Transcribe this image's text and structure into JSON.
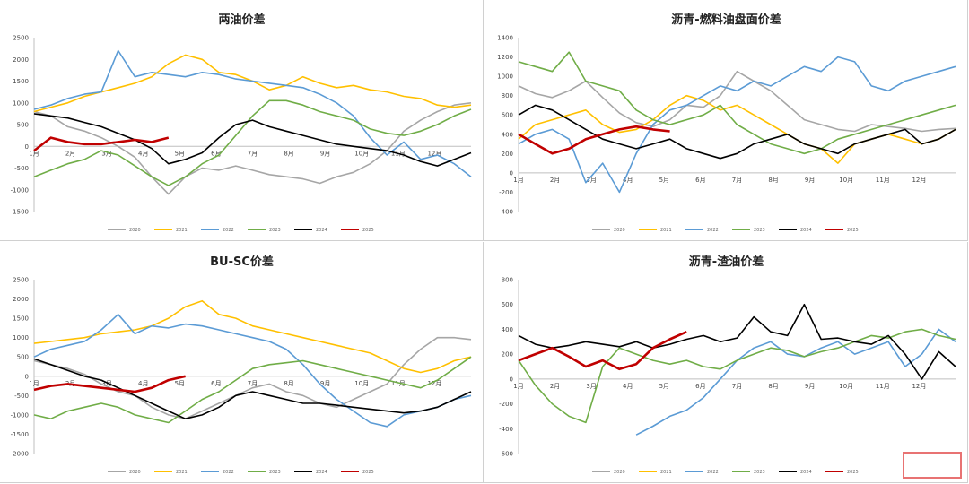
{
  "palette": {
    "2020": "#a6a6a6",
    "2021": "#ffc000",
    "2022": "#5b9bd5",
    "2023": "#70ad47",
    "2024": "#000000",
    "2025": "#c00000"
  },
  "watermark_text": "",
  "chart_data": [
    {
      "type": "line",
      "title": "两油价差",
      "ylim": [
        -1500,
        2500
      ],
      "yticks": [
        "2500",
        "2000",
        "1500",
        "1000",
        "500",
        "0",
        "-500",
        "-1000",
        "-1500"
      ],
      "months": [
        "1月",
        "2月",
        "3月",
        "4月",
        "5月",
        "6月",
        "7月",
        "8月",
        "9月",
        "10月",
        "11月",
        "12月"
      ],
      "series": [
        {
          "name": "2020",
          "color": "#a6a6a6",
          "y": [
            800,
            700,
            450,
            350,
            200,
            0,
            -250,
            -700,
            -1100,
            -700,
            -500,
            -550,
            -450,
            -550,
            -650,
            -700,
            -750,
            -850,
            -700,
            -600,
            -400,
            -100,
            350,
            600,
            800,
            950,
            1000
          ]
        },
        {
          "name": "2021",
          "color": "#ffc000",
          "y": [
            800,
            900,
            1000,
            1150,
            1250,
            1350,
            1450,
            1600,
            1900,
            2100,
            2000,
            1700,
            1650,
            1500,
            1300,
            1400,
            1600,
            1450,
            1350,
            1400,
            1300,
            1250,
            1150,
            1100,
            950,
            900,
            950
          ]
        },
        {
          "name": "2022",
          "color": "#5b9bd5",
          "y": [
            850,
            950,
            1100,
            1200,
            1250,
            2200,
            1600,
            1700,
            1650,
            1600,
            1700,
            1650,
            1550,
            1500,
            1450,
            1400,
            1350,
            1200,
            1000,
            700,
            200,
            -200,
            100,
            -300,
            -200,
            -400,
            -700
          ]
        },
        {
          "name": "2023",
          "color": "#70ad47",
          "y": [
            -700,
            -550,
            -400,
            -300,
            -100,
            -200,
            -450,
            -700,
            -900,
            -700,
            -400,
            -200,
            250,
            700,
            1050,
            1050,
            950,
            800,
            700,
            600,
            400,
            300,
            250,
            350,
            500,
            700,
            850
          ]
        },
        {
          "name": "2024",
          "color": "#000000",
          "y": [
            750,
            700,
            650,
            550,
            450,
            300,
            150,
            -50,
            -400,
            -300,
            -150,
            200,
            500,
            600,
            450,
            350,
            250,
            150,
            50,
            0,
            -50,
            -100,
            -200,
            -350,
            -450,
            -300,
            -150
          ]
        },
        {
          "name": "2025",
          "color": "#c00000",
          "y": [
            -100,
            200,
            100,
            50,
            50,
            100,
            150,
            100,
            200
          ]
        }
      ]
    },
    {
      "type": "line",
      "title": "沥青-燃料油盘面价差",
      "ylim": [
        -400,
        1400
      ],
      "yticks": [
        "1400",
        "1200",
        "1000",
        "800",
        "600",
        "400",
        "200",
        "0",
        "-200",
        "-400"
      ],
      "months": [
        "1月",
        "2月",
        "3月",
        "4月",
        "5月",
        "6月",
        "7月",
        "8月",
        "9月",
        "10月",
        "11月",
        "12月"
      ],
      "series": [
        {
          "name": "2020",
          "color": "#a6a6a6",
          "y": [
            900,
            820,
            780,
            850,
            950,
            780,
            620,
            520,
            480,
            550,
            700,
            680,
            800,
            1050,
            950,
            850,
            700,
            550,
            500,
            450,
            430,
            500,
            480,
            460,
            430,
            450,
            460
          ]
        },
        {
          "name": "2021",
          "color": "#ffc000",
          "y": [
            350,
            500,
            550,
            600,
            650,
            500,
            420,
            450,
            550,
            700,
            800,
            750,
            650,
            700,
            600,
            500,
            400,
            300,
            250,
            100,
            300,
            350,
            400,
            350,
            300,
            350,
            450
          ]
        },
        {
          "name": "2022",
          "color": "#5b9bd5",
          "y": [
            300,
            400,
            450,
            350,
            -100,
            100,
            -200,
            200,
            500,
            650,
            700,
            800,
            900,
            850,
            950,
            900,
            1000,
            1100,
            1050,
            1200,
            1150,
            900,
            850,
            950,
            1000,
            1050,
            1100
          ]
        },
        {
          "name": "2023",
          "color": "#70ad47",
          "y": [
            1150,
            1100,
            1050,
            1250,
            950,
            900,
            850,
            650,
            550,
            500,
            550,
            600,
            700,
            500,
            400,
            300,
            250,
            200,
            250,
            350,
            400,
            450,
            500,
            550,
            600,
            650,
            700
          ]
        },
        {
          "name": "2024",
          "color": "#000000",
          "y": [
            600,
            700,
            650,
            550,
            450,
            350,
            300,
            250,
            300,
            350,
            250,
            200,
            150,
            200,
            300,
            350,
            400,
            300,
            250,
            200,
            300,
            350,
            400,
            450,
            300,
            350,
            450
          ]
        },
        {
          "name": "2025",
          "color": "#c00000",
          "y": [
            400,
            300,
            200,
            250,
            350,
            400,
            450,
            480,
            450,
            430
          ]
        }
      ]
    },
    {
      "type": "line",
      "title": "BU-SC价差",
      "ylim": [
        -2000,
        2500
      ],
      "yticks": [
        "2500",
        "2000",
        "1500",
        "1000",
        "500",
        "0",
        "-500",
        "-1000",
        "-1500",
        "-2000"
      ],
      "months": [
        "1月",
        "2月",
        "3月",
        "4月",
        "5月",
        "6月",
        "7月",
        "8月",
        "9月",
        "10月",
        "11月",
        "12月"
      ],
      "series": [
        {
          "name": "2020",
          "color": "#a6a6a6",
          "y": [
            400,
            300,
            200,
            50,
            -200,
            -400,
            -500,
            -800,
            -1000,
            -1100,
            -900,
            -700,
            -500,
            -300,
            -200,
            -400,
            -500,
            -700,
            -800,
            -600,
            -400,
            -200,
            300,
            700,
            1000,
            1000,
            950
          ]
        },
        {
          "name": "2021",
          "color": "#ffc000",
          "y": [
            850,
            900,
            950,
            1000,
            1100,
            1150,
            1200,
            1300,
            1500,
            1800,
            1950,
            1600,
            1500,
            1300,
            1200,
            1100,
            1000,
            900,
            800,
            700,
            600,
            400,
            200,
            100,
            200,
            400,
            500
          ]
        },
        {
          "name": "2022",
          "color": "#5b9bd5",
          "y": [
            500,
            700,
            800,
            900,
            1200,
            1600,
            1100,
            1300,
            1250,
            1350,
            1300,
            1200,
            1100,
            1000,
            900,
            700,
            300,
            -200,
            -600,
            -900,
            -1200,
            -1300,
            -1000,
            -900,
            -800,
            -600,
            -500
          ]
        },
        {
          "name": "2023",
          "color": "#70ad47",
          "y": [
            -1000,
            -1100,
            -900,
            -800,
            -700,
            -800,
            -1000,
            -1100,
            -1200,
            -900,
            -600,
            -400,
            -100,
            200,
            300,
            350,
            400,
            300,
            200,
            100,
            0,
            -100,
            -200,
            -300,
            -100,
            200,
            500
          ]
        },
        {
          "name": "2024",
          "color": "#000000",
          "y": [
            450,
            300,
            150,
            0,
            -100,
            -300,
            -500,
            -700,
            -900,
            -1100,
            -1000,
            -800,
            -500,
            -400,
            -500,
            -600,
            -700,
            -700,
            -750,
            -800,
            -850,
            -900,
            -950,
            -900,
            -800,
            -600,
            -400
          ]
        },
        {
          "name": "2025",
          "color": "#c00000",
          "y": [
            -350,
            -250,
            -200,
            -250,
            -300,
            -350,
            -400,
            -300,
            -100,
            0
          ]
        }
      ]
    },
    {
      "type": "line",
      "title": "沥青-渣油价差",
      "ylim": [
        -600,
        800
      ],
      "yticks": [
        "800",
        "600",
        "400",
        "200",
        "0",
        "-200",
        "-400",
        "-600"
      ],
      "months": [
        "1月",
        "2月",
        "3月",
        "4月",
        "5月",
        "6月",
        "7月",
        "8月",
        "9月",
        "10月",
        "11月",
        "12月"
      ],
      "series": [
        {
          "name": "2020",
          "color": "#a6a6a6",
          "y": [
            null,
            null,
            null,
            null,
            null,
            null,
            null,
            null,
            null,
            null,
            null,
            null,
            null,
            null,
            null,
            null,
            null,
            null,
            null,
            null,
            null,
            null,
            null,
            null,
            null,
            null,
            null
          ]
        },
        {
          "name": "2021",
          "color": "#ffc000",
          "y": [
            null,
            null,
            null,
            null,
            null,
            null,
            null,
            null,
            null,
            null,
            null,
            null,
            null,
            null,
            null,
            null,
            null,
            null,
            null,
            null,
            null,
            null,
            null,
            null,
            null,
            null,
            null
          ]
        },
        {
          "name": "2022",
          "color": "#5b9bd5",
          "y": [
            null,
            null,
            null,
            null,
            null,
            null,
            null,
            -450,
            -380,
            -300,
            -250,
            -150,
            0,
            150,
            250,
            300,
            200,
            180,
            250,
            300,
            200,
            250,
            300,
            100,
            200,
            400,
            300
          ]
        },
        {
          "name": "2023",
          "color": "#70ad47",
          "y": [
            150,
            -50,
            -200,
            -300,
            -350,
            100,
            250,
            200,
            150,
            120,
            150,
            100,
            80,
            150,
            200,
            250,
            230,
            180,
            220,
            250,
            300,
            350,
            330,
            380,
            400,
            350,
            320
          ]
        },
        {
          "name": "2024",
          "color": "#000000",
          "y": [
            350,
            280,
            250,
            270,
            300,
            280,
            260,
            300,
            250,
            280,
            320,
            350,
            300,
            330,
            500,
            380,
            350,
            600,
            320,
            330,
            300,
            280,
            350,
            200,
            0,
            220,
            100
          ]
        },
        {
          "name": "2025",
          "color": "#c00000",
          "y": [
            150,
            200,
            250,
            180,
            100,
            150,
            80,
            120,
            250,
            320,
            380
          ]
        }
      ]
    }
  ]
}
